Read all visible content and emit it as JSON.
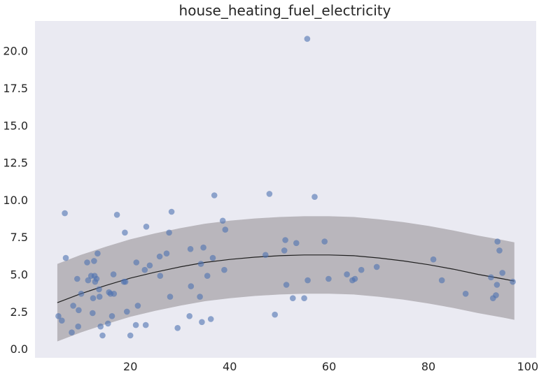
{
  "chart_data": {
    "type": "scatter",
    "title": "house_heating_fuel_electricity",
    "xlabel": "",
    "ylabel": "",
    "xlim": [
      0.8,
      101.7
    ],
    "ylim": [
      -0.6,
      22.0
    ],
    "xticks": [
      20,
      40,
      60,
      80,
      100
    ],
    "xtick_labels": [
      "20",
      "40",
      "60",
      "80",
      "100"
    ],
    "yticks": [
      0.0,
      2.5,
      5.0,
      7.5,
      10.0,
      12.5,
      15.0,
      17.5,
      20.0
    ],
    "ytick_labels": [
      "0.0",
      "2.5",
      "5.0",
      "7.5",
      "10.0",
      "12.5",
      "15.0",
      "17.5",
      "20.0"
    ],
    "grid": false,
    "background": "#eaeaf2",
    "point_color": "#4c72b0",
    "line_color": "#1f1f1f",
    "band_color": "#b0adb3",
    "points": [
      {
        "x": 5.5,
        "y": 2.2
      },
      {
        "x": 6.2,
        "y": 1.9
      },
      {
        "x": 6.8,
        "y": 9.1
      },
      {
        "x": 7.0,
        "y": 6.1
      },
      {
        "x": 8.2,
        "y": 1.1
      },
      {
        "x": 8.5,
        "y": 2.9
      },
      {
        "x": 9.3,
        "y": 4.7
      },
      {
        "x": 9.5,
        "y": 1.5
      },
      {
        "x": 9.6,
        "y": 2.6
      },
      {
        "x": 10.1,
        "y": 3.7
      },
      {
        "x": 11.3,
        "y": 5.8
      },
      {
        "x": 11.5,
        "y": 4.6
      },
      {
        "x": 12.1,
        "y": 4.9
      },
      {
        "x": 12.4,
        "y": 2.4
      },
      {
        "x": 12.5,
        "y": 3.4
      },
      {
        "x": 12.7,
        "y": 5.9
      },
      {
        "x": 12.8,
        "y": 4.9
      },
      {
        "x": 12.9,
        "y": 4.5
      },
      {
        "x": 13.2,
        "y": 4.7
      },
      {
        "x": 13.4,
        "y": 6.4
      },
      {
        "x": 13.7,
        "y": 4.0
      },
      {
        "x": 13.8,
        "y": 3.5
      },
      {
        "x": 14.0,
        "y": 1.5
      },
      {
        "x": 14.4,
        "y": 0.9
      },
      {
        "x": 15.5,
        "y": 1.7
      },
      {
        "x": 15.7,
        "y": 3.8
      },
      {
        "x": 16.0,
        "y": 3.7
      },
      {
        "x": 16.3,
        "y": 2.2
      },
      {
        "x": 16.6,
        "y": 5.0
      },
      {
        "x": 16.7,
        "y": 3.7
      },
      {
        "x": 17.3,
        "y": 9.0
      },
      {
        "x": 18.7,
        "y": 4.5
      },
      {
        "x": 18.9,
        "y": 7.8
      },
      {
        "x": 19.0,
        "y": 4.5
      },
      {
        "x": 19.3,
        "y": 2.5
      },
      {
        "x": 20.0,
        "y": 0.9
      },
      {
        "x": 21.1,
        "y": 1.6
      },
      {
        "x": 21.2,
        "y": 5.8
      },
      {
        "x": 21.5,
        "y": 2.9
      },
      {
        "x": 22.9,
        "y": 5.3
      },
      {
        "x": 23.1,
        "y": 1.6
      },
      {
        "x": 23.2,
        "y": 8.2
      },
      {
        "x": 23.9,
        "y": 5.6
      },
      {
        "x": 25.9,
        "y": 6.2
      },
      {
        "x": 26.0,
        "y": 4.9
      },
      {
        "x": 27.3,
        "y": 6.4
      },
      {
        "x": 27.8,
        "y": 7.8
      },
      {
        "x": 28.0,
        "y": 3.5
      },
      {
        "x": 28.3,
        "y": 9.2
      },
      {
        "x": 29.5,
        "y": 1.4
      },
      {
        "x": 31.9,
        "y": 2.2
      },
      {
        "x": 32.1,
        "y": 6.7
      },
      {
        "x": 32.2,
        "y": 4.2
      },
      {
        "x": 34.0,
        "y": 3.5
      },
      {
        "x": 34.2,
        "y": 5.7
      },
      {
        "x": 34.4,
        "y": 1.8
      },
      {
        "x": 34.7,
        "y": 6.8
      },
      {
        "x": 35.5,
        "y": 4.9
      },
      {
        "x": 36.2,
        "y": 2.0
      },
      {
        "x": 36.6,
        "y": 6.1
      },
      {
        "x": 36.9,
        "y": 10.3
      },
      {
        "x": 38.6,
        "y": 8.6
      },
      {
        "x": 38.9,
        "y": 5.3
      },
      {
        "x": 39.1,
        "y": 8.0
      },
      {
        "x": 47.2,
        "y": 6.3
      },
      {
        "x": 48.0,
        "y": 10.4
      },
      {
        "x": 49.1,
        "y": 2.3
      },
      {
        "x": 51.0,
        "y": 6.6
      },
      {
        "x": 51.2,
        "y": 7.3
      },
      {
        "x": 51.4,
        "y": 4.3
      },
      {
        "x": 52.7,
        "y": 3.4
      },
      {
        "x": 53.4,
        "y": 7.1
      },
      {
        "x": 55.0,
        "y": 3.4
      },
      {
        "x": 55.6,
        "y": 20.8
      },
      {
        "x": 55.7,
        "y": 4.6
      },
      {
        "x": 57.1,
        "y": 10.2
      },
      {
        "x": 59.1,
        "y": 7.2
      },
      {
        "x": 59.9,
        "y": 4.7
      },
      {
        "x": 63.6,
        "y": 5.0
      },
      {
        "x": 64.7,
        "y": 4.6
      },
      {
        "x": 65.2,
        "y": 4.7
      },
      {
        "x": 66.5,
        "y": 5.3
      },
      {
        "x": 69.6,
        "y": 5.5
      },
      {
        "x": 81.0,
        "y": 6.0
      },
      {
        "x": 82.7,
        "y": 4.6
      },
      {
        "x": 87.5,
        "y": 3.7
      },
      {
        "x": 92.6,
        "y": 4.8
      },
      {
        "x": 93.0,
        "y": 3.4
      },
      {
        "x": 93.6,
        "y": 3.6
      },
      {
        "x": 93.8,
        "y": 4.3
      },
      {
        "x": 93.9,
        "y": 7.2
      },
      {
        "x": 94.3,
        "y": 6.6
      },
      {
        "x": 94.9,
        "y": 5.1
      },
      {
        "x": 97.0,
        "y": 4.5
      }
    ],
    "fit_line": [
      {
        "x": 5.3,
        "y": 3.1
      },
      {
        "x": 10,
        "y": 3.7
      },
      {
        "x": 15,
        "y": 4.25
      },
      {
        "x": 20,
        "y": 4.75
      },
      {
        "x": 25,
        "y": 5.15
      },
      {
        "x": 30,
        "y": 5.5
      },
      {
        "x": 35,
        "y": 5.8
      },
      {
        "x": 40,
        "y": 6.0
      },
      {
        "x": 45,
        "y": 6.15
      },
      {
        "x": 50,
        "y": 6.25
      },
      {
        "x": 55,
        "y": 6.3
      },
      {
        "x": 60,
        "y": 6.3
      },
      {
        "x": 65,
        "y": 6.25
      },
      {
        "x": 70,
        "y": 6.1
      },
      {
        "x": 75,
        "y": 5.9
      },
      {
        "x": 80,
        "y": 5.65
      },
      {
        "x": 85,
        "y": 5.35
      },
      {
        "x": 90,
        "y": 5.0
      },
      {
        "x": 95,
        "y": 4.7
      },
      {
        "x": 97.3,
        "y": 4.55
      }
    ],
    "band_halfwidth": 2.6
  }
}
